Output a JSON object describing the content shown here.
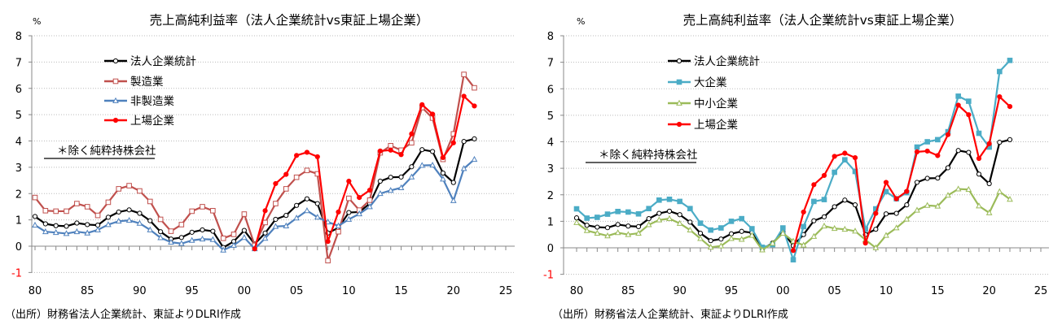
{
  "chart_data": [
    {
      "type": "line",
      "title": "売上高純利益率（法人企業統計vs東証上場企業）",
      "ylabel": "%",
      "ylim": [
        -1,
        8
      ],
      "xlim": [
        1980,
        2025
      ],
      "yticks": [
        "-1",
        "0",
        "1",
        "2",
        "3",
        "4",
        "5",
        "6",
        "7",
        "8"
      ],
      "xticks": [
        "80",
        "85",
        "90",
        "95",
        "00",
        "05",
        "10",
        "15",
        "20",
        "25"
      ],
      "grid": true,
      "legend_placement": "top-left",
      "note": "＊除く純粋持株会社",
      "source": "（出所）財務省法人企業統計、東証よりDLRI作成",
      "series": [
        {
          "name": "法人企業統計",
          "color": "#000000",
          "marker": "open-circle",
          "start": 1980,
          "values": [
            1.13,
            0.85,
            0.78,
            0.76,
            0.88,
            0.82,
            0.8,
            1.1,
            1.3,
            1.38,
            1.25,
            0.97,
            0.55,
            0.27,
            0.33,
            0.53,
            0.62,
            0.57,
            -0.05,
            0.18,
            0.6,
            0.08,
            0.5,
            1.02,
            1.17,
            1.55,
            1.8,
            1.62,
            0.5,
            0.7,
            1.28,
            1.3,
            1.62,
            2.47,
            2.62,
            2.63,
            3.02,
            3.67,
            3.6,
            2.78,
            2.42,
            3.98,
            4.08
          ]
        },
        {
          "name": "製造業",
          "color": "#C0504D",
          "marker": "open-square",
          "start": 1980,
          "values": [
            1.85,
            1.35,
            1.33,
            1.33,
            1.62,
            1.5,
            1.17,
            1.67,
            2.18,
            2.3,
            2.1,
            1.7,
            1.02,
            0.57,
            0.82,
            1.33,
            1.5,
            1.35,
            0.3,
            0.45,
            1.22,
            0.03,
            0.9,
            1.62,
            2.18,
            2.62,
            2.88,
            2.75,
            -0.55,
            0.55,
            1.82,
            1.37,
            1.75,
            3.55,
            3.82,
            3.65,
            3.93,
            5.27,
            4.87,
            3.3,
            4.27,
            6.53,
            6.02
          ]
        },
        {
          "name": "非製造業",
          "color": "#4F81BD",
          "marker": "open-triangle",
          "start": 1980,
          "values": [
            0.8,
            0.55,
            0.52,
            0.48,
            0.55,
            0.5,
            0.62,
            0.82,
            0.95,
            0.98,
            0.87,
            0.62,
            0.32,
            0.15,
            0.1,
            0.22,
            0.27,
            0.25,
            -0.15,
            0.03,
            0.33,
            -0.1,
            0.3,
            0.75,
            0.77,
            1.07,
            1.35,
            1.1,
            0.92,
            0.77,
            1.02,
            1.23,
            1.5,
            2.0,
            2.12,
            2.22,
            2.63,
            3.07,
            3.08,
            2.55,
            1.73,
            2.95,
            3.3
          ]
        },
        {
          "name": "上場企業",
          "color": "#FF0000",
          "marker": "filled-circle",
          "start": 2001,
          "values": [
            -0.1,
            1.35,
            2.38,
            2.73,
            3.45,
            3.57,
            3.4,
            0.18,
            1.3,
            2.47,
            1.85,
            2.13,
            3.62,
            3.65,
            3.48,
            4.27,
            5.38,
            5.02,
            3.37,
            3.93,
            5.7,
            5.33
          ]
        }
      ]
    },
    {
      "type": "line",
      "title": "売上高純利益率（法人企業統計vs東証上場企業）",
      "ylabel": "%",
      "ylim": [
        -1,
        8
      ],
      "xlim": [
        1980,
        2025
      ],
      "yticks": [
        "-1",
        "0",
        "1",
        "2",
        "3",
        "4",
        "5",
        "6",
        "7",
        "8"
      ],
      "xticks": [
        "80",
        "85",
        "90",
        "95",
        "00",
        "05",
        "10",
        "15",
        "20",
        "25"
      ],
      "grid": true,
      "legend_placement": "top-left",
      "note": "＊除く純粋持株会社",
      "source": "（出所）財務省法人企業統計、東証よりDLRI作成",
      "series": [
        {
          "name": "法人企業統計",
          "color": "#000000",
          "marker": "open-circle",
          "start": 1980,
          "values": [
            1.13,
            0.85,
            0.78,
            0.76,
            0.88,
            0.82,
            0.8,
            1.1,
            1.3,
            1.38,
            1.25,
            0.97,
            0.55,
            0.27,
            0.33,
            0.53,
            0.62,
            0.57,
            -0.05,
            0.18,
            0.6,
            0.08,
            0.5,
            1.02,
            1.17,
            1.55,
            1.8,
            1.62,
            0.5,
            0.7,
            1.28,
            1.3,
            1.62,
            2.47,
            2.62,
            2.63,
            3.02,
            3.67,
            3.6,
            2.78,
            2.42,
            3.98,
            4.08
          ]
        },
        {
          "name": "大企業",
          "color": "#4BACC6",
          "marker": "filled-square",
          "start": 1980,
          "values": [
            1.47,
            1.12,
            1.15,
            1.27,
            1.37,
            1.35,
            1.28,
            1.48,
            1.8,
            1.83,
            1.75,
            1.48,
            0.93,
            0.67,
            0.75,
            1.0,
            1.1,
            0.72,
            0.02,
            0.12,
            0.75,
            -0.45,
            0.8,
            1.75,
            1.82,
            2.85,
            3.32,
            2.88,
            0.7,
            1.47,
            2.12,
            1.85,
            2.08,
            3.8,
            4.0,
            4.08,
            4.38,
            5.72,
            5.53,
            4.32,
            3.8,
            6.65,
            7.07
          ]
        },
        {
          "name": "中小企業",
          "color": "#9BBB59",
          "marker": "open-triangle",
          "start": 1980,
          "values": [
            0.95,
            0.65,
            0.55,
            0.45,
            0.57,
            0.5,
            0.55,
            0.87,
            1.05,
            1.1,
            0.92,
            0.67,
            0.35,
            0.02,
            0.07,
            0.35,
            0.32,
            0.47,
            -0.08,
            0.17,
            0.55,
            0.25,
            0.1,
            0.43,
            0.82,
            0.73,
            0.7,
            0.63,
            0.3,
            0.0,
            0.47,
            0.75,
            1.08,
            1.42,
            1.6,
            1.57,
            1.98,
            2.22,
            2.2,
            1.58,
            1.32,
            2.12,
            1.83
          ]
        },
        {
          "name": "上場企業",
          "color": "#FF0000",
          "marker": "filled-circle",
          "start": 2001,
          "values": [
            -0.1,
            1.35,
            2.38,
            2.73,
            3.45,
            3.57,
            3.4,
            0.18,
            1.3,
            2.47,
            1.85,
            2.13,
            3.62,
            3.65,
            3.48,
            4.27,
            5.38,
            5.02,
            3.37,
            3.93,
            5.7,
            5.33
          ]
        }
      ]
    }
  ],
  "colors": {
    "negative_tick": "#FF0000",
    "grid": "#BBBBBB"
  }
}
